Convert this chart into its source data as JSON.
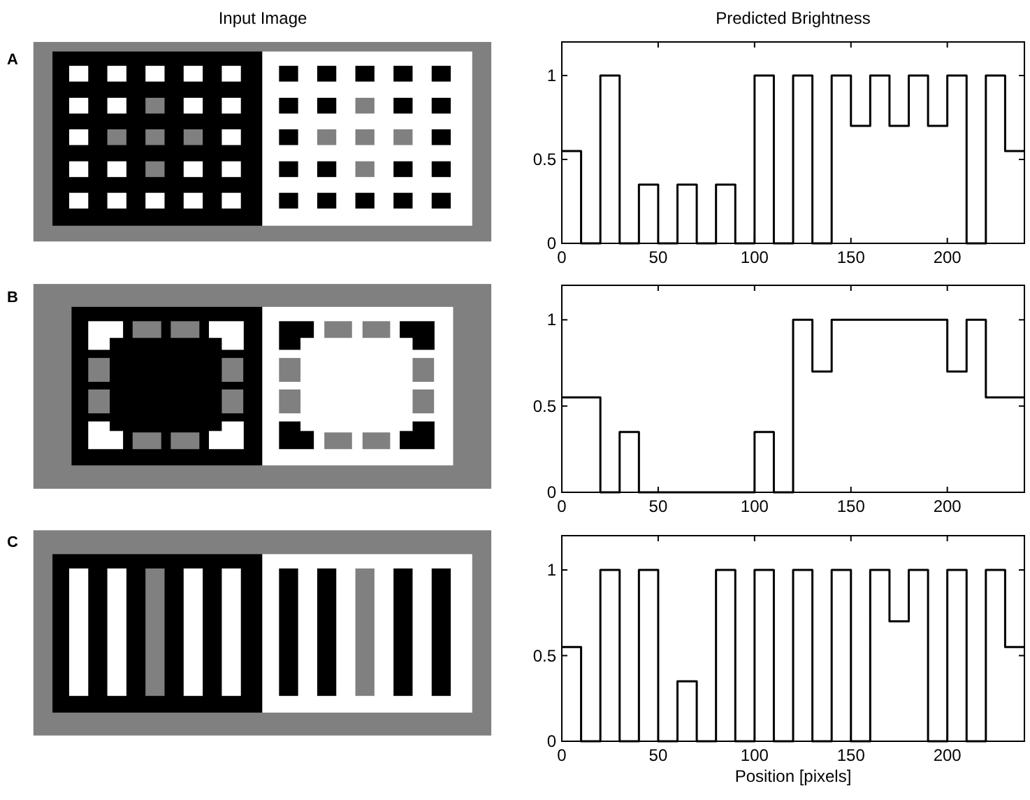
{
  "chart_data": [
    {
      "type": "step",
      "title": "Predicted Brightness",
      "annotations": [
        "Input Image",
        "A"
      ],
      "x": [
        0,
        10,
        20,
        30,
        40,
        50,
        60,
        70,
        80,
        90,
        100,
        110,
        120,
        130,
        140,
        150,
        160,
        170,
        180,
        190,
        200,
        210,
        220,
        230,
        240
      ],
      "series": [
        {
          "color": "#000000",
          "values": [
            0.55,
            0,
            1,
            0,
            0.35,
            0,
            0.35,
            0,
            0.35,
            0,
            1,
            0,
            1,
            0,
            1,
            0.7,
            1,
            0.7,
            1,
            0.7,
            1,
            0,
            1,
            0.55,
            0.55
          ]
        }
      ],
      "xlim": [
        0,
        240
      ],
      "ylim": [
        0,
        1.2
      ],
      "xticks": [
        0,
        50,
        100,
        150,
        200
      ],
      "yticks": [
        0,
        0.5,
        1
      ]
    },
    {
      "type": "step",
      "annotations": [
        "B"
      ],
      "x": [
        0,
        10,
        20,
        30,
        40,
        50,
        60,
        70,
        80,
        90,
        100,
        110,
        120,
        130,
        140,
        150,
        160,
        170,
        180,
        190,
        200,
        210,
        220,
        230,
        240
      ],
      "series": [
        {
          "color": "#000000",
          "values": [
            0.55,
            0.55,
            0,
            0.35,
            0,
            0,
            0,
            0,
            0,
            0,
            0.35,
            0,
            1,
            0.7,
            1,
            1,
            1,
            1,
            1,
            1,
            0.7,
            1,
            0.55,
            0.55,
            0.55
          ]
        }
      ],
      "xlim": [
        0,
        240
      ],
      "ylim": [
        0,
        1.2
      ],
      "xticks": [
        0,
        50,
        100,
        150,
        200
      ],
      "yticks": [
        0,
        0.5,
        1
      ]
    },
    {
      "type": "step",
      "xlabel": "Position [pixels]",
      "annotations": [
        "C"
      ],
      "x": [
        0,
        10,
        20,
        30,
        40,
        50,
        60,
        70,
        80,
        90,
        100,
        110,
        120,
        130,
        140,
        150,
        160,
        170,
        180,
        190,
        200,
        210,
        220,
        230,
        240
      ],
      "series": [
        {
          "color": "#000000",
          "values": [
            0.55,
            0,
            1,
            0,
            1,
            0,
            0.35,
            0,
            1,
            0,
            1,
            0,
            1,
            0,
            1,
            0,
            1,
            0.7,
            1,
            0,
            1,
            0,
            1,
            0.55,
            0.55
          ]
        }
      ],
      "xlim": [
        0,
        240
      ],
      "ylim": [
        0,
        1.2
      ],
      "xticks": [
        0,
        50,
        100,
        150,
        200
      ],
      "yticks": [
        0,
        0.5,
        1
      ]
    }
  ]
}
